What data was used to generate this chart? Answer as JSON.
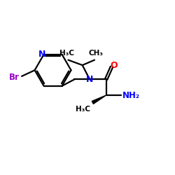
{
  "background": "#ffffff",
  "bond_color": "#000000",
  "bond_width": 1.6,
  "N_color": "#0000ff",
  "O_color": "#ff0000",
  "Br_color": "#9900cc",
  "NH2_color": "#0000ff",
  "figsize": [
    2.5,
    2.5
  ],
  "dpi": 100,
  "xlim": [
    0,
    10
  ],
  "ylim": [
    0,
    10
  ]
}
